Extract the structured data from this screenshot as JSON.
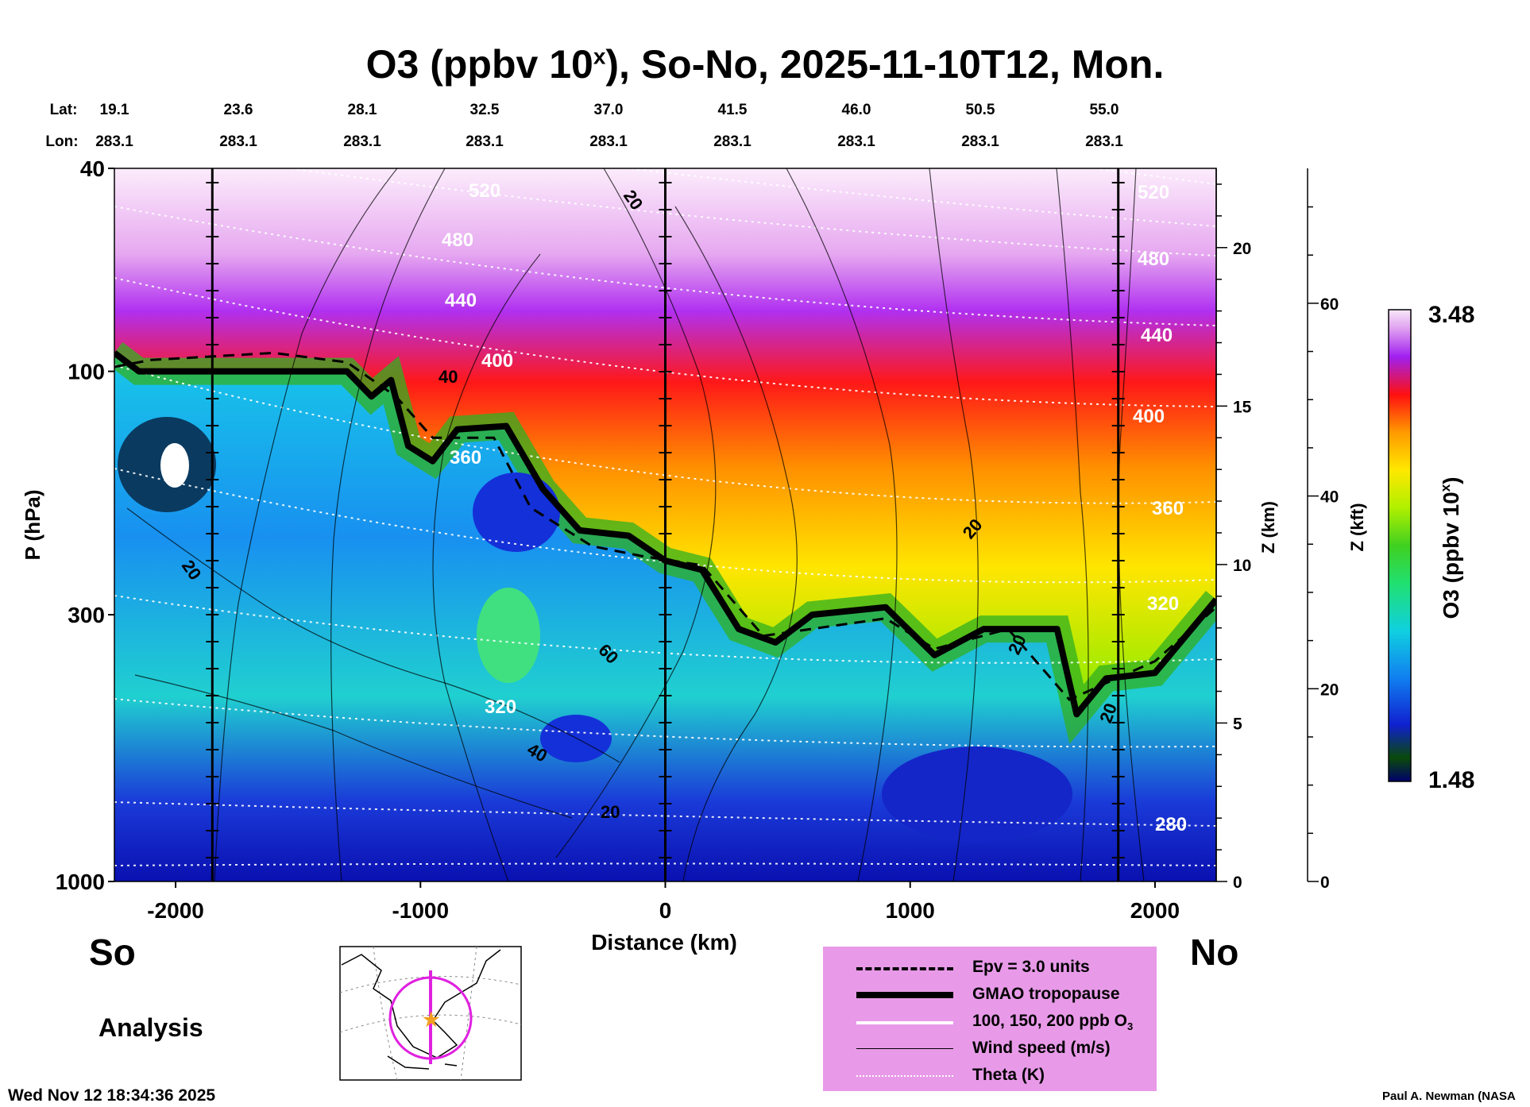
{
  "title": {
    "main": "O3 (ppbv 10",
    "sup": "x",
    "rest": "), So-No, 2025-11-10T12, Mon."
  },
  "lat_label": "Lat:",
  "lon_label": "Lon:",
  "lat_values": [
    "19.1",
    "23.6",
    "28.1",
    "32.5",
    "37.0",
    "41.5",
    "46.0",
    "50.5",
    "55.0"
  ],
  "lon_values": [
    "283.1",
    "283.1",
    "283.1",
    "283.1",
    "283.1",
    "283.1",
    "283.1",
    "283.1",
    "283.1"
  ],
  "so_label": "So",
  "no_label": "No",
  "analysis_label": "Analysis",
  "timestamp": "Wed Nov 12 18:34:36 2025",
  "credit": "Paul A. Newman (NASA",
  "legend": {
    "epv": "Epv = 3.0 units",
    "tropopause": "GMAO tropopause",
    "o3_contours": "100, 150, 200 ppb O",
    "o3_sub": "3",
    "wind": "Wind speed (m/s)",
    "theta": "Theta (K)"
  },
  "colors": {
    "legend_bg": "#e89ae8",
    "map_track": "#e020e0",
    "map_star": "#f0a020"
  },
  "chart_data": {
    "type": "heatmap",
    "title": "O3 (ppbv 10^x), So-No, 2025-11-10T12, Mon.",
    "xlabel": "Distance (km)",
    "ylabel_left": "P (hPa)",
    "ylabel_right1": "Z (km)",
    "ylabel_right2": "Z (kft)",
    "colorbar_label": "O3 (ppbv 10",
    "colorbar_label_sup": "x",
    "colorbar_label_close": ")",
    "colorbar_range": [
      1.48,
      3.48
    ],
    "colorbar_min_label": "1.48",
    "colorbar_max_label": "3.48",
    "xlim": [
      -2250,
      2250
    ],
    "ylim_hpa": [
      1000,
      40
    ],
    "x_ticks": [
      -2000,
      -1000,
      0,
      1000,
      2000
    ],
    "x_tick_labels": [
      "-2000",
      "-1000",
      "0",
      "1000",
      "2000"
    ],
    "vertical_lines_km": [
      -1850,
      0,
      1850
    ],
    "p_ticks": [
      40,
      100,
      300,
      1000
    ],
    "p_tick_labels": [
      "40",
      "100",
      "300",
      "1000"
    ],
    "z_km_ticks": [
      0,
      5,
      10,
      15,
      20
    ],
    "z_kft_ticks": [
      0,
      20,
      40,
      60
    ],
    "tropopause": [
      {
        "x": -2250,
        "p": 92
      },
      {
        "x": -2150,
        "p": 100
      },
      {
        "x": -1300,
        "p": 100
      },
      {
        "x": -1200,
        "p": 112
      },
      {
        "x": -1120,
        "p": 104
      },
      {
        "x": -1050,
        "p": 140
      },
      {
        "x": -950,
        "p": 150
      },
      {
        "x": -850,
        "p": 130
      },
      {
        "x": -650,
        "p": 128
      },
      {
        "x": -500,
        "p": 170
      },
      {
        "x": -350,
        "p": 205
      },
      {
        "x": -150,
        "p": 210
      },
      {
        "x": 0,
        "p": 235
      },
      {
        "x": 150,
        "p": 245
      },
      {
        "x": 300,
        "p": 320
      },
      {
        "x": 450,
        "p": 340
      },
      {
        "x": 600,
        "p": 300
      },
      {
        "x": 900,
        "p": 290
      },
      {
        "x": 1100,
        "p": 360
      },
      {
        "x": 1300,
        "p": 320
      },
      {
        "x": 1600,
        "p": 320
      },
      {
        "x": 1680,
        "p": 470
      },
      {
        "x": 1800,
        "p": 400
      },
      {
        "x": 2000,
        "p": 390
      },
      {
        "x": 2250,
        "p": 280
      }
    ],
    "epv_3pvu": [
      {
        "x": -2250,
        "p": 98
      },
      {
        "x": -2100,
        "p": 95
      },
      {
        "x": -1600,
        "p": 92
      },
      {
        "x": -1300,
        "p": 96
      },
      {
        "x": -1100,
        "p": 112
      },
      {
        "x": -950,
        "p": 135
      },
      {
        "x": -700,
        "p": 135
      },
      {
        "x": -550,
        "p": 185
      },
      {
        "x": -300,
        "p": 220
      },
      {
        "x": -100,
        "p": 230
      },
      {
        "x": 150,
        "p": 240
      },
      {
        "x": 400,
        "p": 330
      },
      {
        "x": 900,
        "p": 305
      },
      {
        "x": 1100,
        "p": 350
      },
      {
        "x": 1400,
        "p": 320
      },
      {
        "x": 1650,
        "p": 440
      },
      {
        "x": 2000,
        "p": 370
      },
      {
        "x": 2250,
        "p": 290
      }
    ],
    "theta_K_labels": [
      "280",
      "320",
      "360",
      "400",
      "440",
      "480",
      "520"
    ],
    "wind_speed_labels": [
      "20",
      "40",
      "60"
    ],
    "o3_contour_ppb": [
      100,
      150,
      200
    ],
    "inset_map": "polar stereographic map, North America, cross-section track along 283.1E"
  }
}
